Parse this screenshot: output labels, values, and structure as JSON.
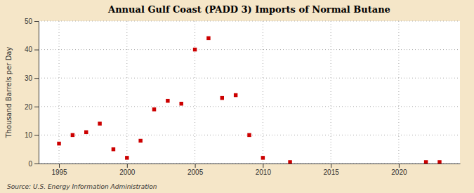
{
  "chart_data": {
    "type": "scatter",
    "title": "Annual Gulf Coast (PADD 3) Imports of Normal Butane",
    "ylabel": "Thousand Barrels per Day",
    "source": "Source: U.S. Energy Information Administration",
    "x": [
      1995,
      1996,
      1997,
      1998,
      1999,
      2000,
      2001,
      2002,
      2003,
      2004,
      2005,
      2006,
      2007,
      2008,
      2009,
      2010,
      2012,
      2022,
      2023
    ],
    "values": [
      7,
      10,
      11,
      14,
      5,
      2,
      8,
      19,
      22,
      21,
      40,
      44,
      23,
      24,
      10,
      2,
      0.5,
      0.5,
      0.5
    ],
    "color": "#cc0000",
    "marker": "square",
    "xlim": [
      1993.5,
      2024.5
    ],
    "xticks": [
      1995,
      2000,
      2005,
      2010,
      2015,
      2020
    ],
    "ylim": [
      0,
      50
    ],
    "yticks": [
      0,
      10,
      20,
      30,
      40,
      50
    ],
    "grid": true
  }
}
